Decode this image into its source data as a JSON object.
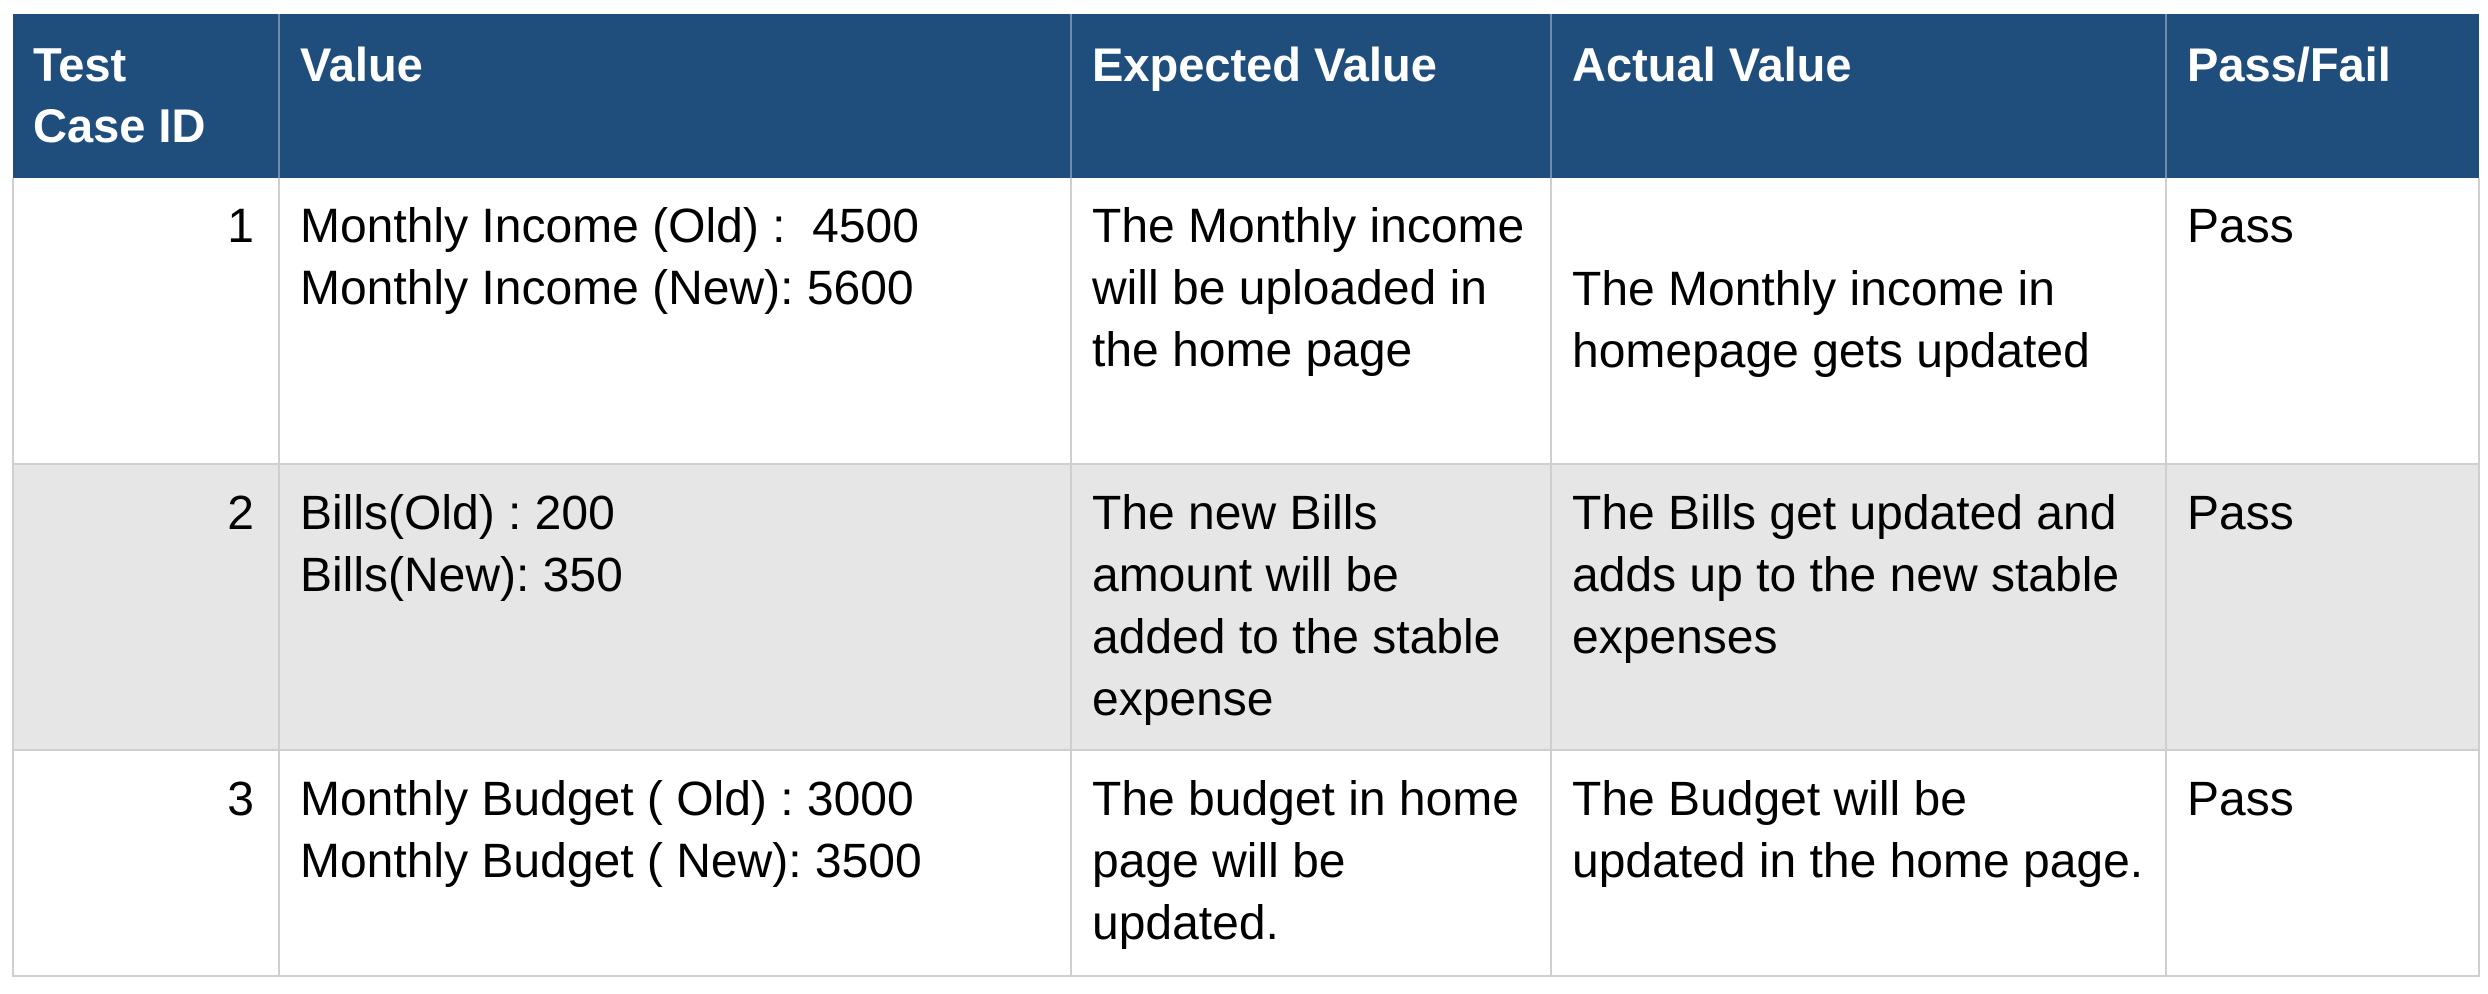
{
  "table": {
    "headers": [
      "Test\nCase ID",
      "Value",
      "Expected Value",
      "Actual Value",
      "Pass/Fail"
    ],
    "rows": [
      {
        "id": "1",
        "value_lines": [
          "Monthly Income (Old) :  4500",
          "Monthly Income (New): 5600"
        ],
        "expected": "The Monthly income will be uploaded in the home page",
        "actual": "The Monthly income in homepage gets updated",
        "result": "Pass"
      },
      {
        "id": "2",
        "value_lines": [
          "Bills(Old) : 200",
          "Bills(New): 350"
        ],
        "expected": "The new Bills amount will be added to the stable expense",
        "actual": "The Bills get updated and adds up to the new stable expenses",
        "result": "Pass"
      },
      {
        "id": "3",
        "value_lines": [
          "Monthly Budget ( Old) : 3000",
          "Monthly Budget ( New): 3500"
        ],
        "expected": "The budget in home page will be updated.",
        "actual": "The Budget will be updated in the home page.",
        "result": "Pass"
      }
    ]
  },
  "colors": {
    "header_bg": "#1f4e7d",
    "header_text": "#ffffff",
    "stripe_bg": "#e6e6e6"
  }
}
